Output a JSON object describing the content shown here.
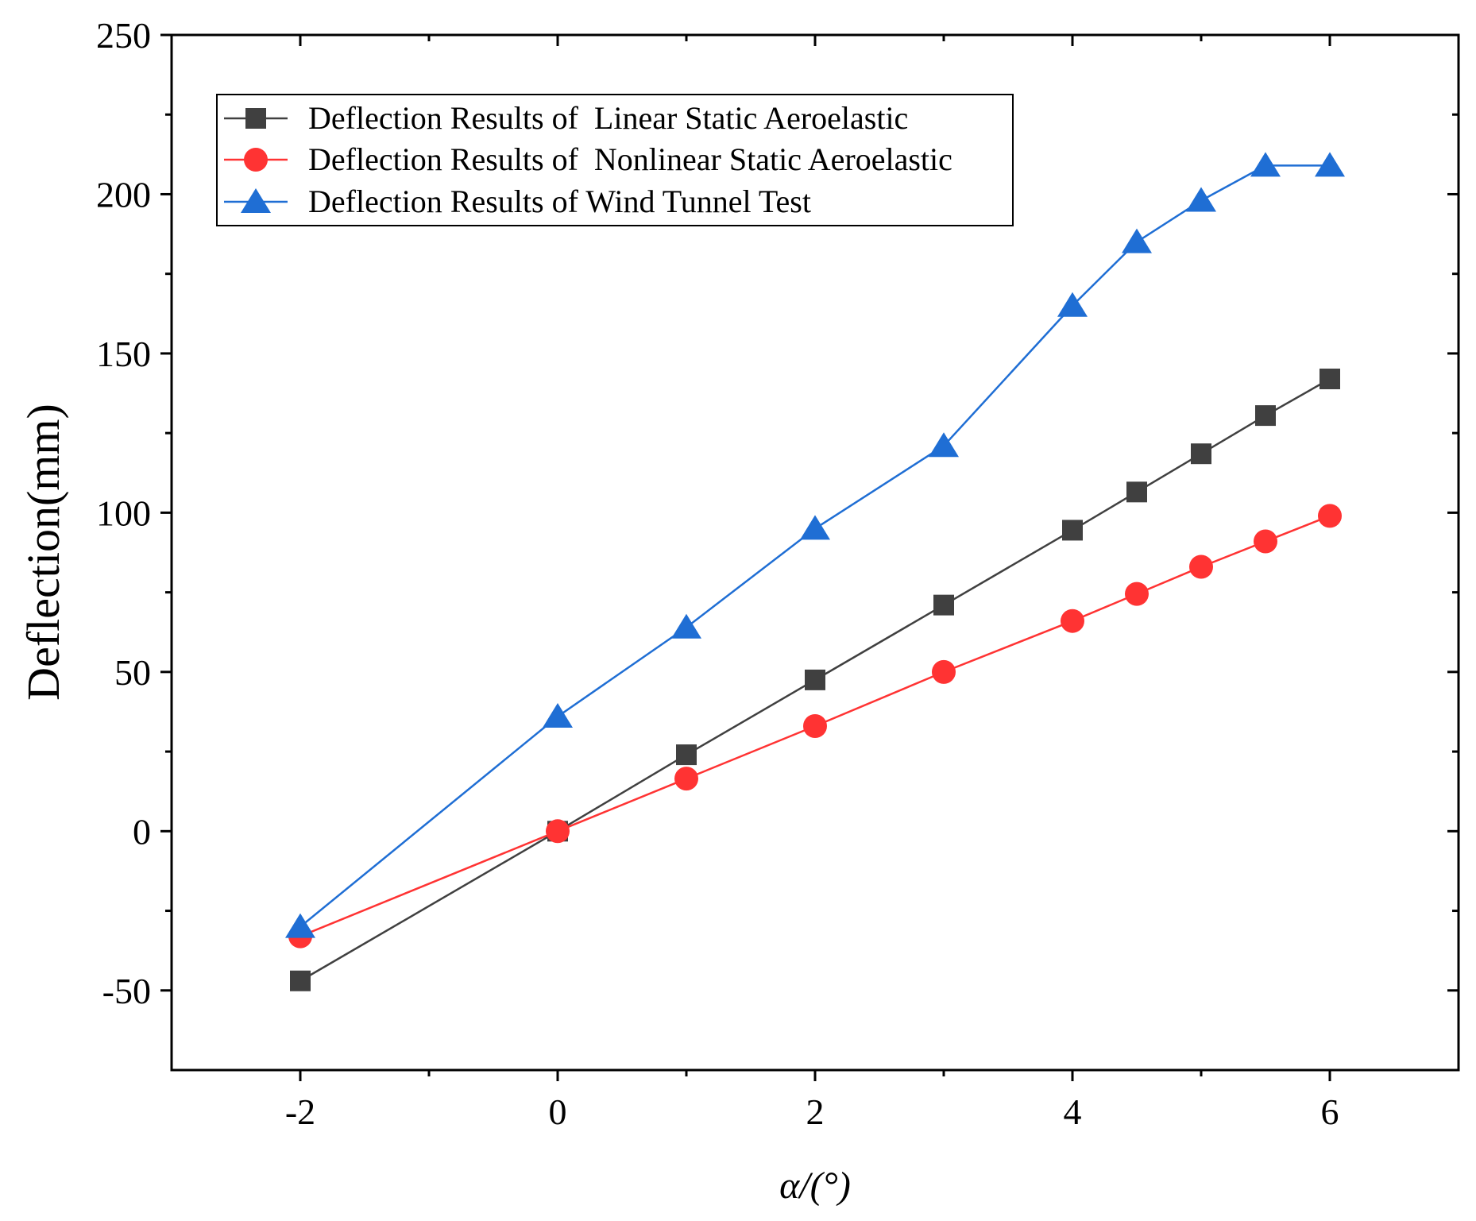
{
  "chart_data": {
    "type": "line",
    "title": "",
    "xlabel": "α/(°)",
    "ylabel": "Deflection(mm)",
    "xlim": [
      -3,
      7
    ],
    "ylim": [
      -75,
      250
    ],
    "x_ticks": [
      -2,
      0,
      2,
      4,
      6
    ],
    "x_tick_labels": [
      "-2",
      "0",
      "2",
      "4",
      "6"
    ],
    "y_ticks": [
      -50,
      0,
      50,
      100,
      150,
      200,
      250
    ],
    "y_tick_labels": [
      "-50",
      "0",
      "50",
      "100",
      "150",
      "200",
      "250"
    ],
    "grid": false,
    "legend_position": "top-left",
    "series": [
      {
        "name": "Deflection Results of  Linear Static Aeroelastic",
        "color": "#404040",
        "marker": "square",
        "x": [
          -2,
          0,
          1,
          2,
          3,
          4,
          4.5,
          5,
          5.5,
          6
        ],
        "values": [
          -47,
          0,
          24,
          47.5,
          71,
          94.5,
          106.5,
          118.5,
          130.5,
          142
        ]
      },
      {
        "name": "Deflection Results of  Nonlinear Static Aeroelastic",
        "color": "#ff3333",
        "marker": "circle",
        "x": [
          -2,
          0,
          1,
          2,
          3,
          4,
          4.5,
          5,
          5.5,
          6
        ],
        "values": [
          -33,
          0,
          16.5,
          33,
          50,
          66,
          74.5,
          83,
          91,
          99
        ]
      },
      {
        "name": "Deflection Results of Wind Tunnel Test",
        "color": "#1f6ed4",
        "marker": "triangle",
        "x": [
          -2,
          0,
          1,
          2,
          3,
          4,
          4.5,
          5,
          5.5,
          6
        ],
        "values": [
          -30,
          36,
          64,
          95,
          121,
          165,
          185,
          198,
          209,
          209
        ]
      }
    ]
  }
}
